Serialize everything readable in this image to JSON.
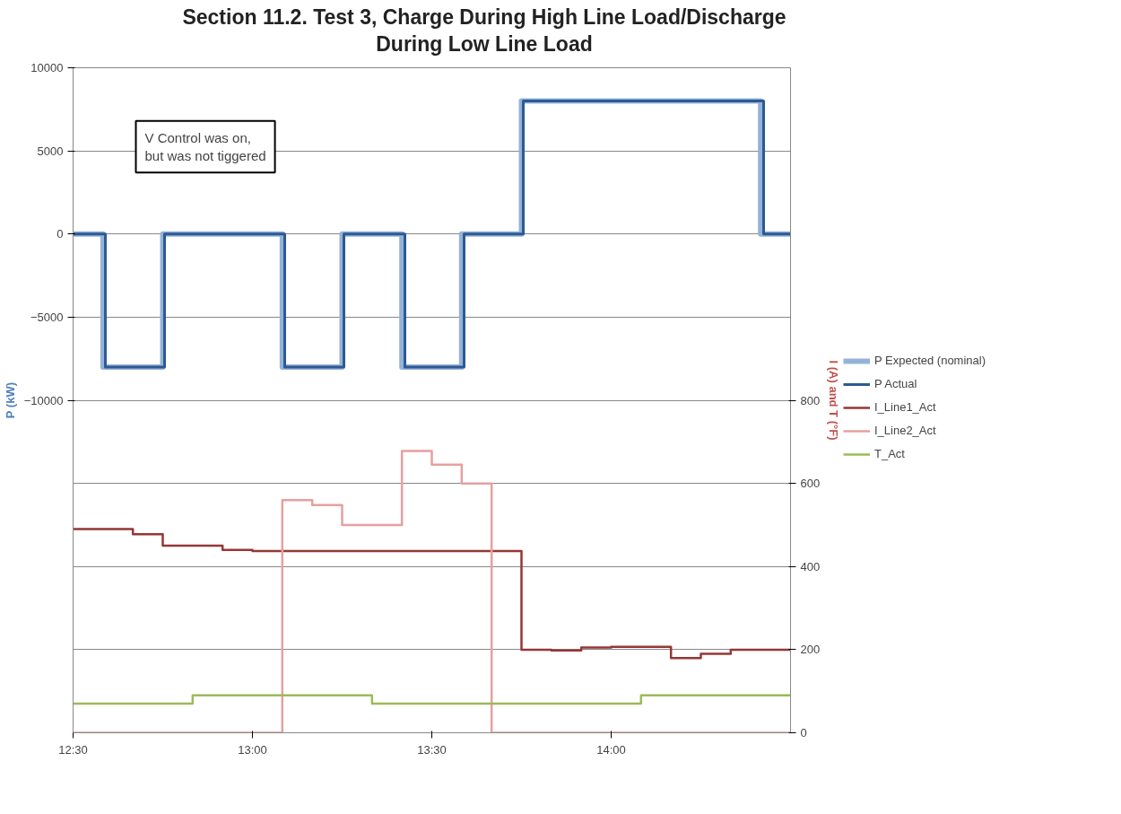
{
  "chart_data": {
    "type": "step",
    "title": "Section 11.2. Test 3, Charge During High Line Load/Discharge During Low Line Load",
    "ylabel": "P (kW)",
    "y2label": "I (A) and T (°F)",
    "annotations": [
      "V Control was on, but was not tiggered"
    ],
    "xlim": [
      12.5,
      14.5
    ],
    "xticks": [
      {
        "value": 12.5,
        "label": "12:30"
      },
      {
        "value": 13.0,
        "label": "13:00"
      },
      {
        "value": 13.5,
        "label": "13:30"
      },
      {
        "value": 14.0,
        "label": "14:00"
      }
    ],
    "ylim": [
      -30000,
      10000
    ],
    "yticks": [
      10000,
      5000,
      0,
      -5000,
      -10000
    ],
    "y2lim": [
      0,
      1600
    ],
    "y2ticks": [
      0,
      200,
      400,
      600,
      800
    ],
    "grid": "y",
    "legend": "right",
    "series": [
      {
        "name": "P Expected (nominal)",
        "color": "#95b3d7",
        "x": [
          12.5,
          12.5833,
          12.75,
          13.0833,
          13.25,
          13.4167,
          13.5833,
          13.75,
          14.4167,
          14.5
        ],
        "values": [
          0,
          -8000,
          0,
          -8000,
          0,
          -8000,
          0,
          8000,
          0,
          0
        ]
      },
      {
        "name": "P Actual",
        "color": "#2c5a94",
        "x": [
          12.5,
          12.59,
          12.755,
          13.09,
          13.255,
          13.425,
          13.59,
          13.755,
          14.425,
          14.5
        ],
        "values": [
          0,
          -8000,
          0,
          -8000,
          0,
          -8000,
          0,
          8000,
          0,
          0
        ]
      },
      {
        "name": "I_Line1_Act",
        "color": "#953735",
        "axis": "y2",
        "x": [
          12.5,
          12.6667,
          12.75,
          12.9167,
          13.0,
          13.75,
          13.8333,
          13.9167,
          14.0,
          14.1667,
          14.25,
          14.3333,
          14.5
        ],
        "values": [
          490,
          478,
          450,
          440,
          437,
          200,
          198,
          205,
          207,
          180,
          190,
          200,
          200
        ]
      },
      {
        "name": "I_Line2_Act",
        "color": "#e6a0a0",
        "axis": "y2",
        "x": [
          12.5,
          13.0833,
          13.1667,
          13.25,
          13.4167,
          13.5,
          13.5833,
          13.6667,
          14.5
        ],
        "values": [
          0,
          560,
          548,
          500,
          678,
          645,
          600,
          0,
          0
        ]
      },
      {
        "name": "T_Act",
        "color": "#9bbb59",
        "axis": "y2",
        "x": [
          12.5,
          12.8333,
          13.3333,
          14.0833,
          14.5
        ],
        "values": [
          70,
          90,
          70,
          90,
          90
        ]
      }
    ]
  }
}
